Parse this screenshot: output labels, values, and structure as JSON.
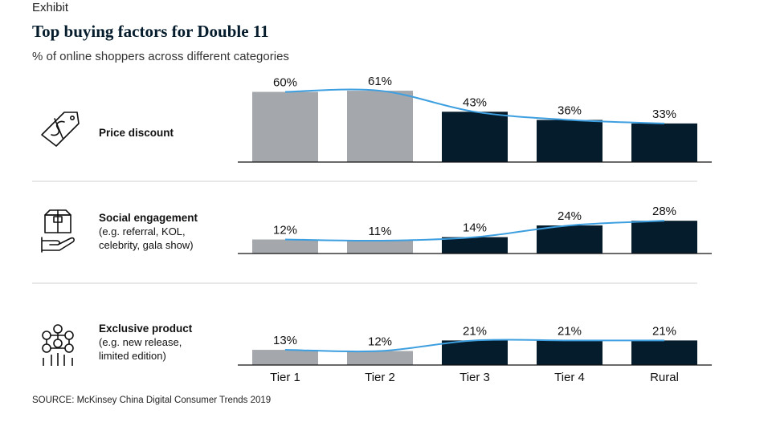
{
  "header": {
    "exhibit": "Exhibit",
    "title": "Top buying factors for Double 11",
    "subtitle": "% of online shoppers across different categories"
  },
  "source": "SOURCE: McKinsey China Digital Consumer Trends 2019",
  "colors": {
    "bar_light": "#a4a8ac",
    "bar_dark": "#051c2c",
    "trend_line": "#3d9fe0",
    "separator": "#d0d0d0"
  },
  "chart_data": [
    {
      "type": "bar",
      "categories": [
        "Tier 1",
        "Tier 2",
        "Tier 3",
        "Tier 4",
        "Rural"
      ],
      "values": [
        60,
        61,
        43,
        36,
        33
      ],
      "value_labels": [
        "60%",
        "61%",
        "43%",
        "36%",
        "33%"
      ],
      "row_title": "Price discount",
      "row_subtitle": [],
      "icon": "price-tag-icon",
      "ylim": [
        0,
        70
      ],
      "overlay": "trend-line"
    },
    {
      "type": "bar",
      "categories": [
        "Tier 1",
        "Tier 2",
        "Tier 3",
        "Tier 4",
        "Rural"
      ],
      "values": [
        12,
        11,
        14,
        24,
        28
      ],
      "value_labels": [
        "12%",
        "11%",
        "14%",
        "24%",
        "28%"
      ],
      "row_title": "Social engagement",
      "row_subtitle": [
        "(e.g. referral, KOL,",
        "celebrity, gala show)"
      ],
      "icon": "gift-box-hand-icon",
      "ylim": [
        0,
        70
      ],
      "overlay": "trend-line"
    },
    {
      "type": "bar",
      "categories": [
        "Tier 1",
        "Tier 2",
        "Tier 3",
        "Tier 4",
        "Rural"
      ],
      "values": [
        13,
        12,
        21,
        21,
        21
      ],
      "value_labels": [
        "13%",
        "12%",
        "21%",
        "21%",
        "21%"
      ],
      "row_title": "Exclusive product",
      "row_subtitle": [
        "(e.g. new release,",
        "limited edition)"
      ],
      "icon": "network-nodes-icon",
      "ylim": [
        0,
        70
      ],
      "overlay": "trend-line"
    }
  ]
}
